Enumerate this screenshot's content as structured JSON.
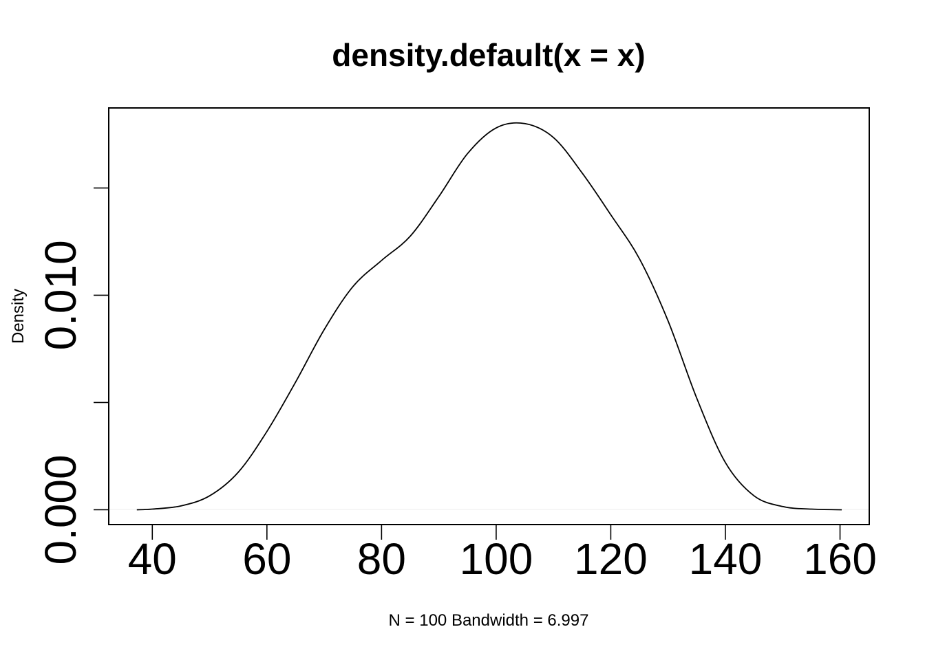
{
  "chart_data": {
    "type": "line",
    "title": "density.default(x = x)",
    "xlabel": "N = 100   Bandwidth = 6.997",
    "ylabel": "Density",
    "xlim": [
      32.4,
      165.1
    ],
    "ylim": [
      -0.00069,
      0.01873
    ],
    "x_ticks": [
      40,
      60,
      80,
      100,
      120,
      140,
      160
    ],
    "x_tick_labels": [
      "40",
      "60",
      "80",
      "100",
      "120",
      "140",
      "160"
    ],
    "y_ticks": [
      0.0,
      0.005,
      0.01,
      0.015
    ],
    "y_tick_labels": [
      "0.000",
      "",
      "0.010",
      ""
    ],
    "grid": false,
    "series": [
      {
        "x": [
          37.3,
          40,
          45,
          50,
          55,
          60,
          65,
          70,
          75,
          80,
          85,
          90,
          95,
          100,
          105,
          110,
          115,
          120,
          125,
          130,
          135,
          140,
          145,
          150,
          155,
          160.3
        ],
        "y": [
          0.0,
          3e-05,
          0.00018,
          0.00065,
          0.00175,
          0.00365,
          0.00595,
          0.0084,
          0.0104,
          0.01162,
          0.01275,
          0.0146,
          0.0166,
          0.0178,
          0.018,
          0.01735,
          0.0157,
          0.01375,
          0.0117,
          0.0088,
          0.0052,
          0.0022,
          0.00065,
          0.00015,
          3e-05,
          0.0
        ]
      }
    ]
  }
}
